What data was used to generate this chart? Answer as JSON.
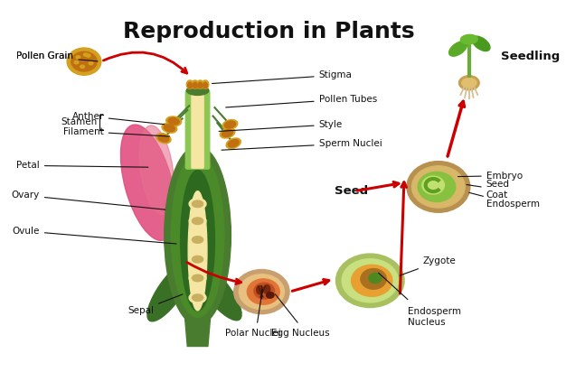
{
  "title": "Reproduction in Plants",
  "title_fontsize": 18,
  "title_fontweight": "bold",
  "background_color": "#ffffff",
  "label_font": 7.5,
  "labels": {
    "pollen_grain": "Pollen Grain",
    "stigma": "Stigma",
    "pollen_tubes": "Pollen Tubes",
    "style": "Style",
    "sperm_nuclei": "Sperm Nuclei",
    "anther": "Anther",
    "filament": "Filament",
    "stamen": "Stamen",
    "petal": "Petal",
    "ovary": "Ovary",
    "ovule": "Ovule",
    "sepal": "Sepal",
    "polar_nuclei": "Polar Nuclei",
    "egg_nucleus": "Egg Nucleus",
    "zygote": "Zygote",
    "endosperm_nucleus": "Endosperm\nNucleus",
    "embryo": "Embryo",
    "seed_coat": "Seed\nCoat",
    "endosperm": "Endosperm",
    "seed": "Seed",
    "seedling": "Seedling"
  },
  "colors": {
    "stem_outer": "#4a7c2f",
    "stem_inner": "#6aab3a",
    "stem_light": "#8dc653",
    "ovary_dark": "#2d6a1f",
    "ovary_mid": "#4a8a28",
    "cream": "#f5e6a3",
    "pollen": "#e8a020",
    "pollen_dark": "#c07010",
    "petal": "#e05080",
    "sepal": "#3a7025",
    "red_arrow": "#cc0000",
    "seed_outer": "#c8a050",
    "seedling_stem": "#6aab3a"
  }
}
